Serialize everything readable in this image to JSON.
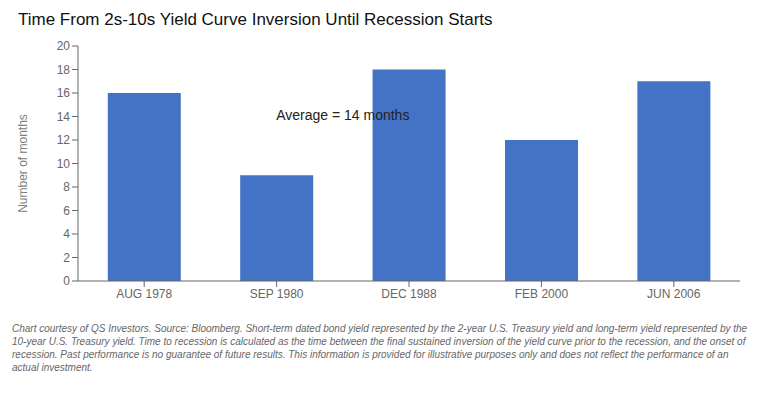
{
  "chart_data": {
    "type": "bar",
    "title": "Time From 2s-10s Yield Curve Inversion Until Recession Starts",
    "categories": [
      "AUG 1978",
      "SEP 1980",
      "DEC 1988",
      "FEB 2000",
      "JUN 2006"
    ],
    "values": [
      16,
      9,
      18,
      12,
      17
    ],
    "color": "#4472c4",
    "ylabel": "Number of months",
    "ylim": [
      0,
      20
    ],
    "yticks": [
      0,
      2,
      4,
      6,
      8,
      10,
      12,
      14,
      16,
      18,
      20
    ],
    "grid": false,
    "annotations": [
      {
        "text": "Average = 14 months",
        "x": 1.5,
        "y": 14.0
      }
    ],
    "footer": "Chart courtesy of QS Investors. Source: Bloomberg. Short-term dated bond yield represented by the 2-year U.S. Treasury yield and long-term yield represented by the 10-year U.S. Treasury yield. Time to recession is calculated as the time between the final sustained inversion of the yield curve prior to the recession, and the onset of recession. Past performance is no guarantee of future results. This information is provided for illustrative purposes only and does not reflect the performance of an actual investment."
  }
}
